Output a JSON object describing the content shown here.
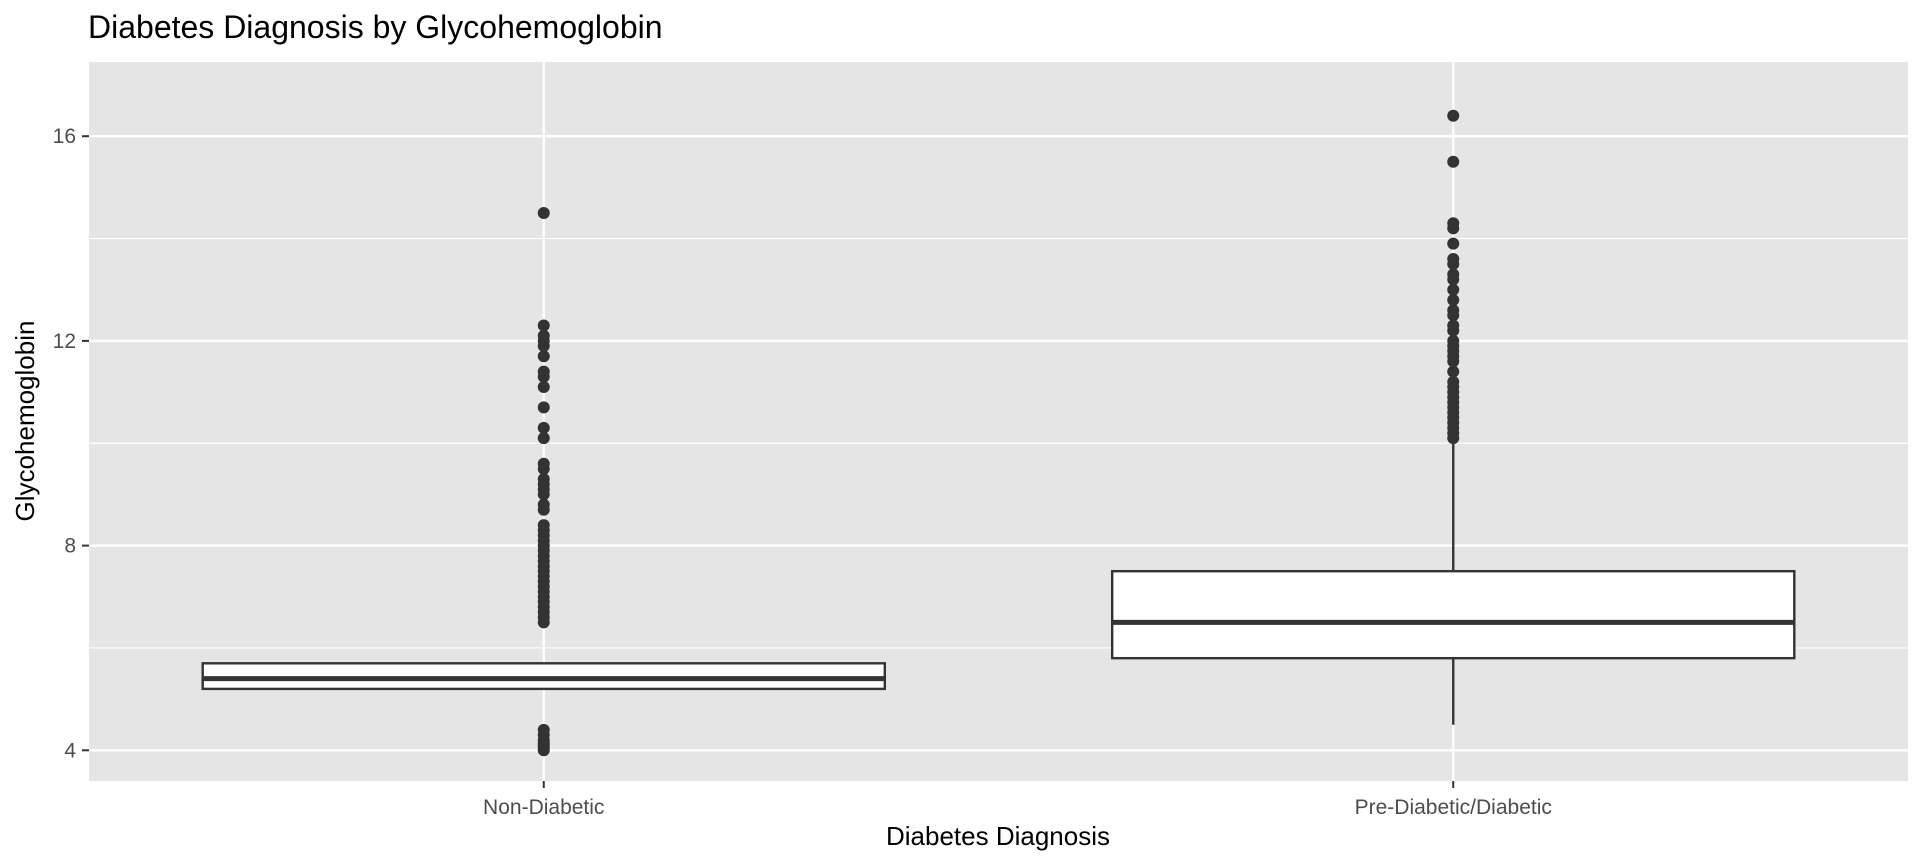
{
  "chart_data": {
    "type": "boxplot",
    "title": "Diabetes Diagnosis by Glycohemoglobin",
    "xlabel": "Diabetes Diagnosis",
    "ylabel": "Glycohemoglobin",
    "ylim": [
      3.4,
      17.45
    ],
    "yticks": [
      4,
      8,
      12,
      16
    ],
    "grid": true,
    "legend": "none",
    "colors": {
      "panel": "#e5e5e5",
      "grid": "#ffffff",
      "box_fill": "#ffffff",
      "box_line": "#333333",
      "outlier": "#333333"
    },
    "categories": [
      "Non-Diabetic",
      "Pre-Diabetic/Diabetic"
    ],
    "boxes": [
      {
        "category": "Non-Diabetic",
        "whisker_low": 5.2,
        "q1": 5.2,
        "median": 5.4,
        "q3": 5.7,
        "whisker_high": 5.7,
        "outliers": [
          4.0,
          4.05,
          4.1,
          4.15,
          4.2,
          4.3,
          4.4,
          6.5,
          6.6,
          6.7,
          6.8,
          6.9,
          7.0,
          7.1,
          7.2,
          7.3,
          7.4,
          7.5,
          7.6,
          7.7,
          7.8,
          7.9,
          8.0,
          8.1,
          8.2,
          8.3,
          8.4,
          8.7,
          8.8,
          9.0,
          9.1,
          9.2,
          9.3,
          9.5,
          9.6,
          10.1,
          10.3,
          10.7,
          11.1,
          11.3,
          11.4,
          11.7,
          11.9,
          12.0,
          12.1,
          12.3,
          14.5
        ]
      },
      {
        "category": "Pre-Diabetic/Diabetic",
        "whisker_low": 4.5,
        "q1": 5.8,
        "median": 6.5,
        "q3": 7.5,
        "whisker_high": 10.0,
        "outliers": [
          10.1,
          10.2,
          10.3,
          10.4,
          10.5,
          10.6,
          10.7,
          10.8,
          10.9,
          11.0,
          11.1,
          11.2,
          11.4,
          11.6,
          11.7,
          11.8,
          11.9,
          12.0,
          12.2,
          12.3,
          12.5,
          12.6,
          12.8,
          13.0,
          13.2,
          13.3,
          13.5,
          13.6,
          13.9,
          14.2,
          14.3,
          15.5,
          16.4
        ]
      }
    ]
  }
}
